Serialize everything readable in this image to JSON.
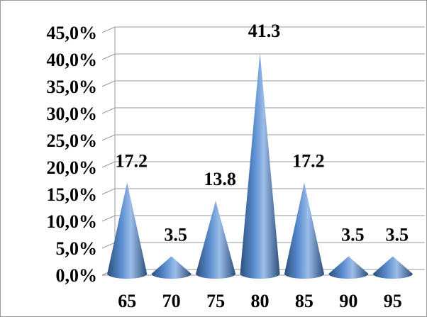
{
  "chart_data": {
    "type": "bar",
    "style": "3d-cone",
    "categories": [
      "65",
      "70",
      "75",
      "80",
      "85",
      "90",
      "95"
    ],
    "values": [
      17.2,
      3.5,
      13.8,
      41.3,
      17.2,
      3.5,
      3.5
    ],
    "data_labels": [
      "17.2",
      "3.5",
      "13.8",
      "41.3",
      "17.2",
      "3.5",
      "3.5"
    ],
    "y_ticks": [
      "0,0%",
      "5,0%",
      "10,0%",
      "15,0%",
      "20,0%",
      "25,0%",
      "30,0%",
      "35,0%",
      "40,0%",
      "45,0%"
    ],
    "ylim": [
      0,
      45
    ],
    "grid": true,
    "legend": "none",
    "colors": {
      "cone_light": "#9cbde8",
      "cone_mid": "#4f81bd",
      "cone_dark": "#2c4f7c",
      "grid": "#9a9a9a"
    }
  }
}
